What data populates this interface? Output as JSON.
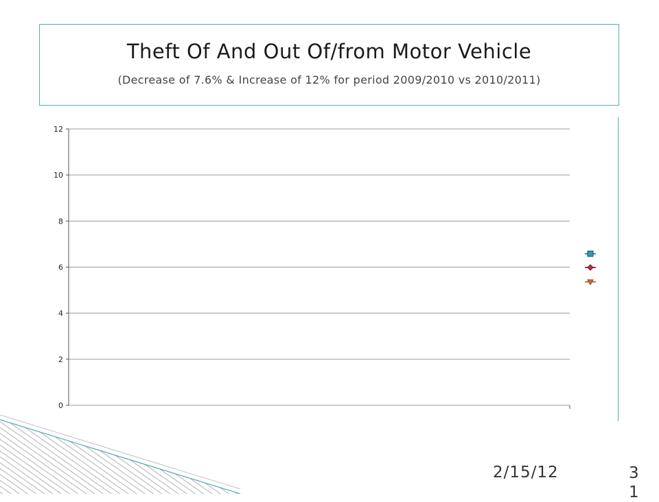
{
  "slide": {
    "title": "Theft Of And Out Of/from Motor Vehicle",
    "subtitle": "(Decrease of 7.6%  &  Increase of 12% for period 2009/2010  vs  2010/2011)",
    "date": "2/15/12",
    "page_number": "31"
  },
  "colors": {
    "accent": "#5aaab8",
    "gridline": "#9a9a9a",
    "series_1": "#3a95b4",
    "series_2": "#c0323a",
    "series_3": "#d0763a"
  },
  "chart_data": {
    "type": "line",
    "title": "",
    "xlabel": "",
    "ylabel": "",
    "ylim": [
      0,
      12
    ],
    "yticks": [
      "0",
      "2",
      "4",
      "6",
      "8",
      "10",
      "12"
    ],
    "categories": [],
    "grid": true,
    "legend_position": "right",
    "series": [
      {
        "marker": "square",
        "color": "#3a95b4",
        "values": []
      },
      {
        "marker": "diamond",
        "color": "#c0323a",
        "values": []
      },
      {
        "marker": "triangle-down",
        "color": "#d0763a",
        "values": []
      }
    ]
  }
}
